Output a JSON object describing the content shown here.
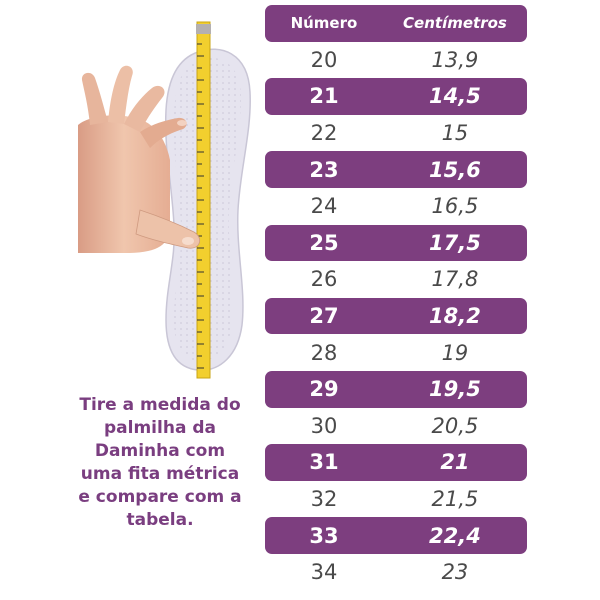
{
  "table": {
    "header": {
      "number": "Número",
      "centimeters": "Centímetros"
    },
    "rows": [
      {
        "number": "20",
        "cm": "13,9",
        "style": "light"
      },
      {
        "number": "21",
        "cm": "14,5",
        "style": "dark"
      },
      {
        "number": "22",
        "cm": "15",
        "style": "light"
      },
      {
        "number": "23",
        "cm": "15,6",
        "style": "dark"
      },
      {
        "number": "24",
        "cm": "16,5",
        "style": "light"
      },
      {
        "number": "25",
        "cm": "17,5",
        "style": "dark"
      },
      {
        "number": "26",
        "cm": "17,8",
        "style": "light"
      },
      {
        "number": "27",
        "cm": "18,2",
        "style": "dark"
      },
      {
        "number": "28",
        "cm": "19",
        "style": "light"
      },
      {
        "number": "29",
        "cm": "19,5",
        "style": "dark"
      },
      {
        "number": "30",
        "cm": "20,5",
        "style": "light"
      },
      {
        "number": "31",
        "cm": "21",
        "style": "dark"
      },
      {
        "number": "32",
        "cm": "21,5",
        "style": "light"
      },
      {
        "number": "33",
        "cm": "22,4",
        "style": "dark"
      },
      {
        "number": "34",
        "cm": "23",
        "style": "light"
      }
    ]
  },
  "caption": {
    "lines": [
      "Tire a medida do",
      "palmilha da",
      "Daminha com",
      "uma fita métrica",
      "e compare com a",
      "tabela."
    ]
  },
  "colors": {
    "accent": "#7d3e7f",
    "caption_text": "#7a3e80",
    "light_row_text": "#4a4a4a",
    "insole": "#e6e4ef",
    "tape": "#f2cf2e",
    "skin": "#e9b9a0"
  },
  "illustration": {
    "icons": [
      "hand-icon",
      "insole-icon",
      "measuring-tape-icon"
    ]
  }
}
